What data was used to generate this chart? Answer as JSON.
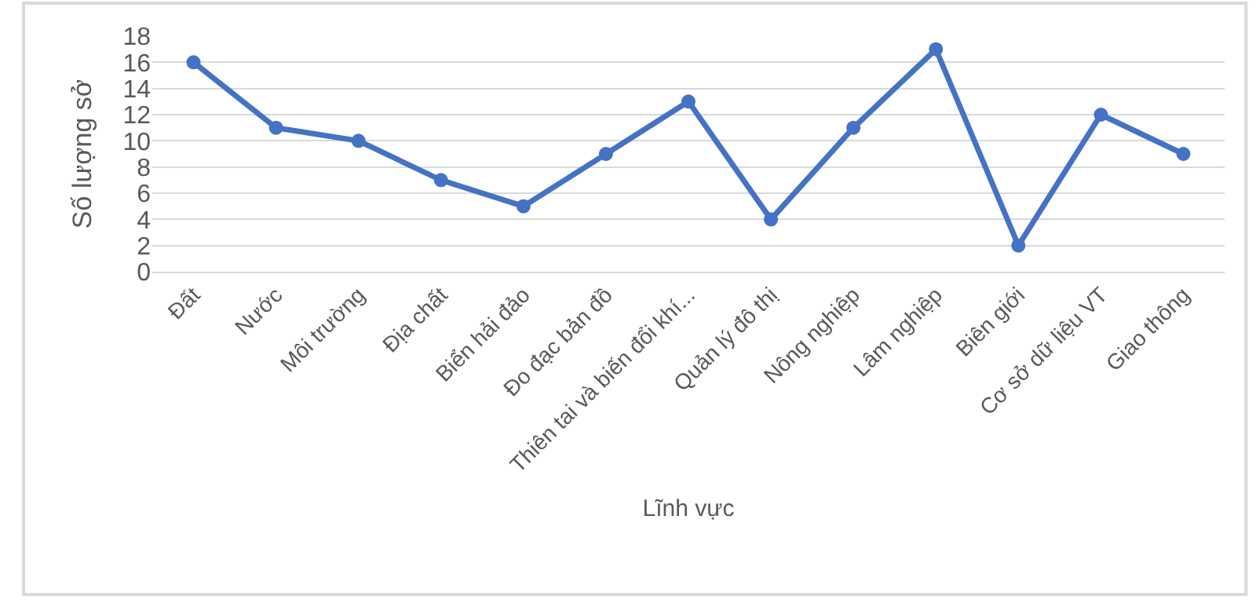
{
  "chart_data": {
    "type": "line",
    "xlabel": "Lĩnh vực",
    "ylabel": "Số lượng sở",
    "categories": [
      "Đất",
      "Nước",
      "Môi trường",
      "Địa chất",
      "Biển hải đảo",
      "Đo đạc bản đồ",
      "Thiên tai và biến đổi khí...",
      "Quản lý đô thị",
      "Nông nghiệp",
      "Lâm nghiệp",
      "Biên giới",
      "Cơ sở dữ liệu VT",
      "Giao thông"
    ],
    "series": [
      {
        "color": "#4472c4",
        "values": [
          16,
          11,
          10,
          7,
          5,
          9,
          13,
          4,
          11,
          17,
          2,
          12,
          9
        ]
      }
    ],
    "ylim": [
      0,
      18
    ],
    "yticks": [
      0,
      2,
      4,
      6,
      8,
      10,
      12,
      14,
      16,
      18
    ],
    "grid": "y",
    "legend": false,
    "marker": "circle",
    "line_style": "solid"
  }
}
